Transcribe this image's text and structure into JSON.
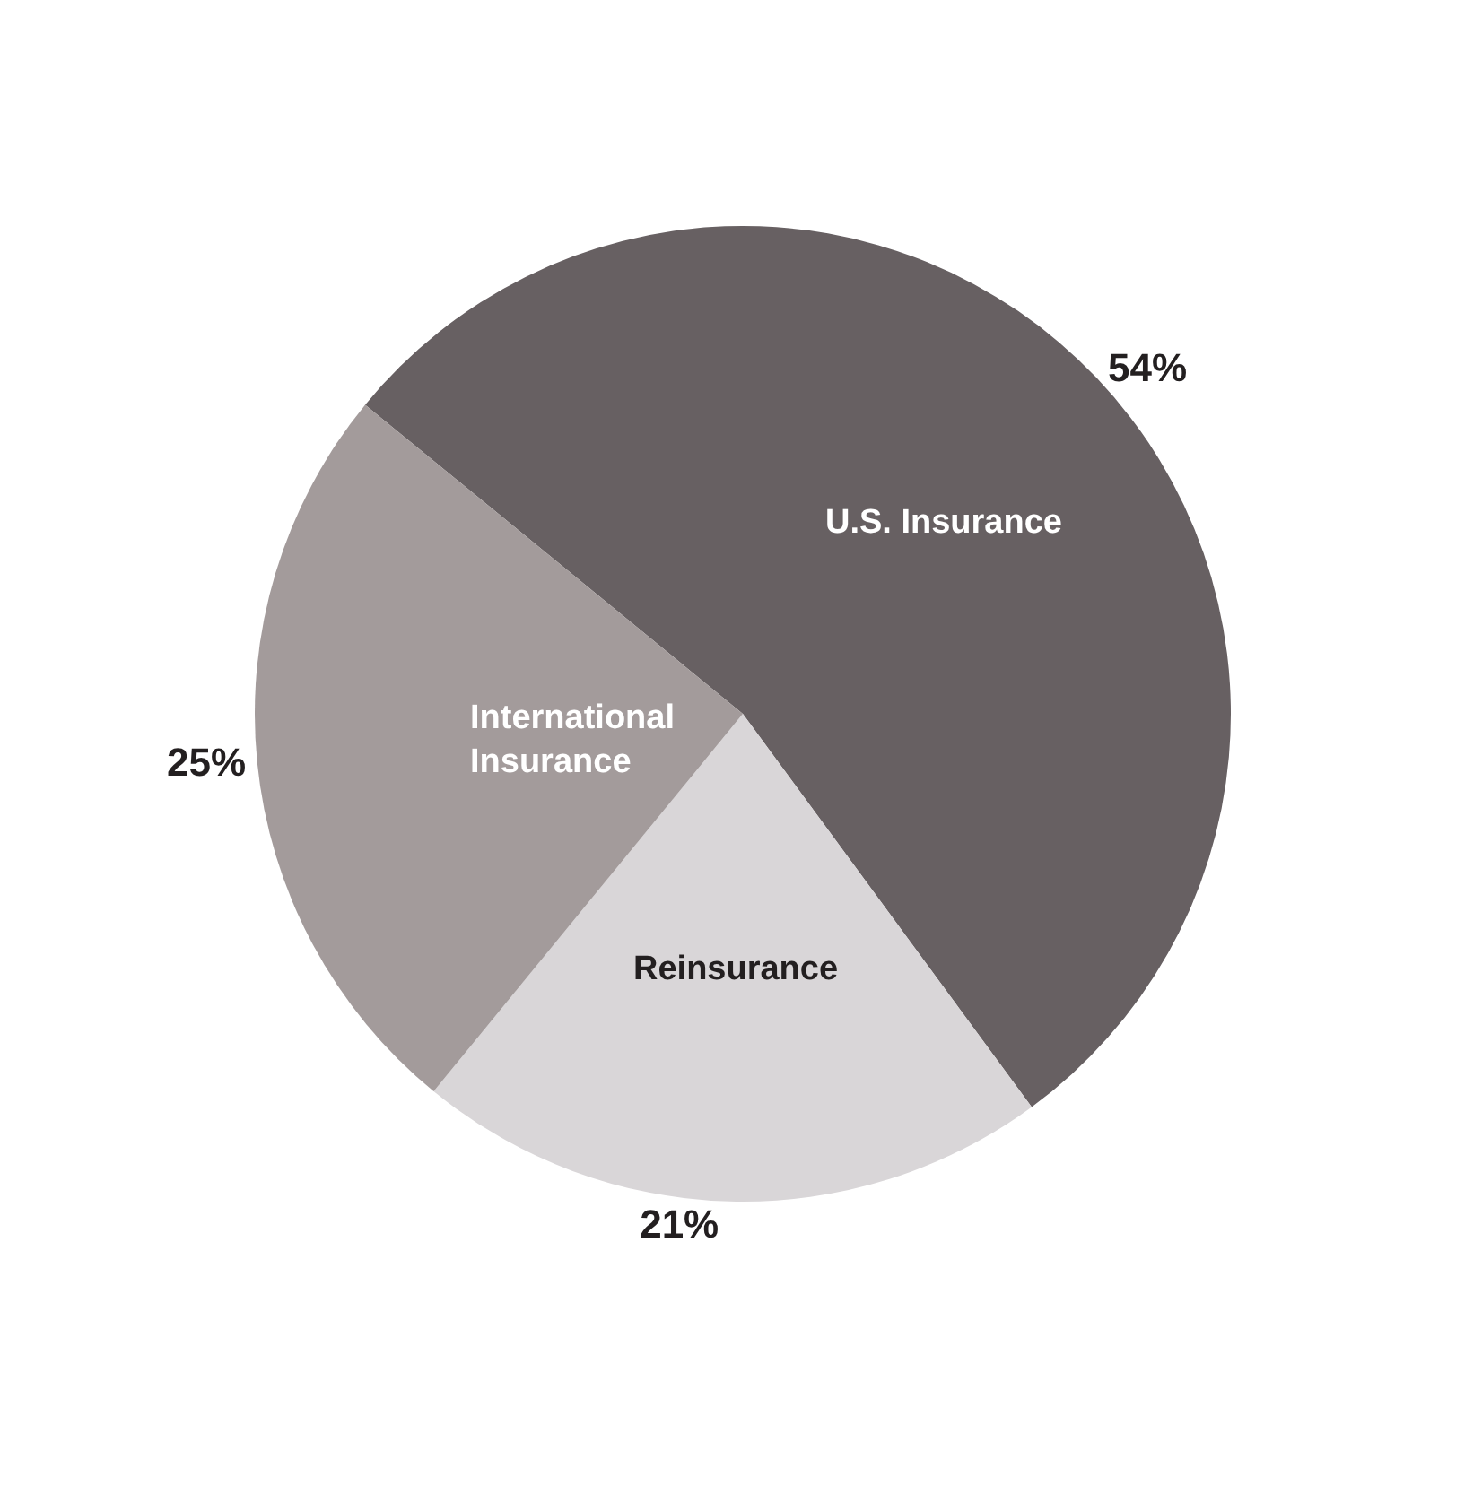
{
  "chart_data": {
    "type": "pie",
    "categories": [
      "U.S. Insurance",
      "Reinsurance",
      "International Insurance"
    ],
    "values": [
      54,
      21,
      25
    ],
    "colors": [
      "#676062",
      "#d9d6d8",
      "#a39b9b"
    ],
    "value_labels": [
      "54%",
      "21%",
      "25%"
    ],
    "legend": false
  }
}
